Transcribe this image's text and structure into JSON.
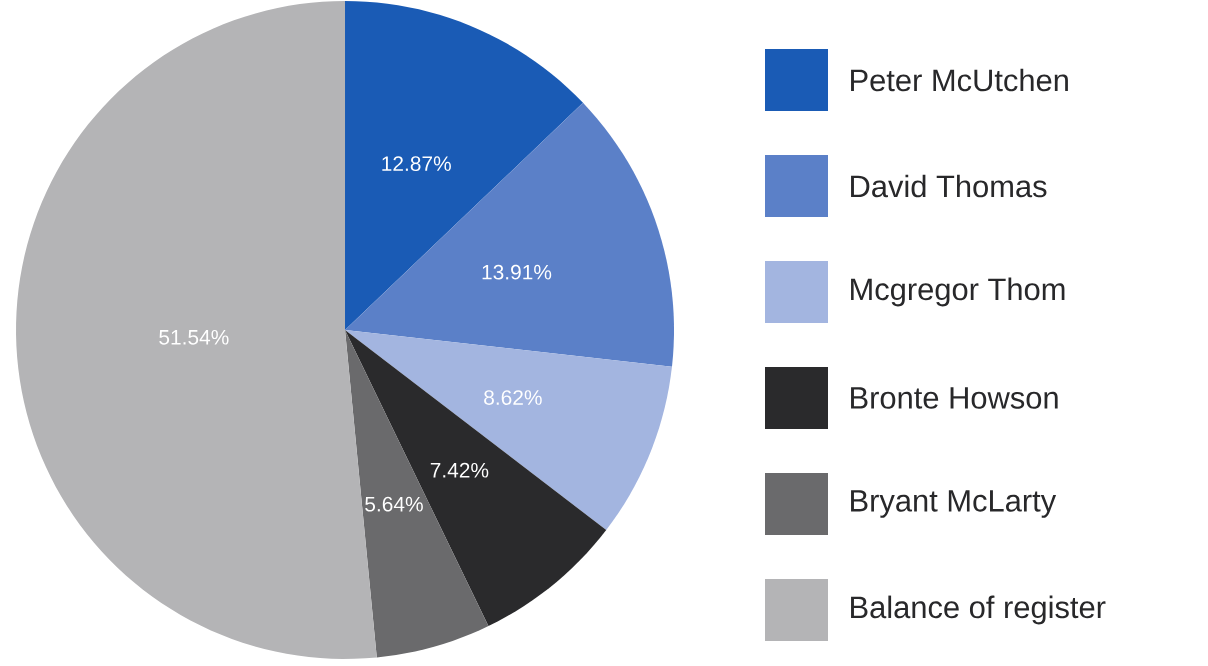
{
  "chart_data": {
    "type": "pie",
    "categories": [
      "Peter McUtchen",
      "David Thomas",
      "Mcgregor Thom",
      "Bronte Howson",
      "Bryant McLarty",
      "Balance of register"
    ],
    "values": [
      12.87,
      13.91,
      8.62,
      7.42,
      5.64,
      51.54
    ],
    "value_labels": [
      "12.87%",
      "13.91%",
      "8.62%",
      "7.42%",
      "5.64%",
      "51.54%"
    ],
    "colors": [
      "#1a5bb5",
      "#5b80c8",
      "#a3b5e0",
      "#2a2a2c",
      "#6a6a6c",
      "#b4b4b6"
    ],
    "legend": "right"
  }
}
